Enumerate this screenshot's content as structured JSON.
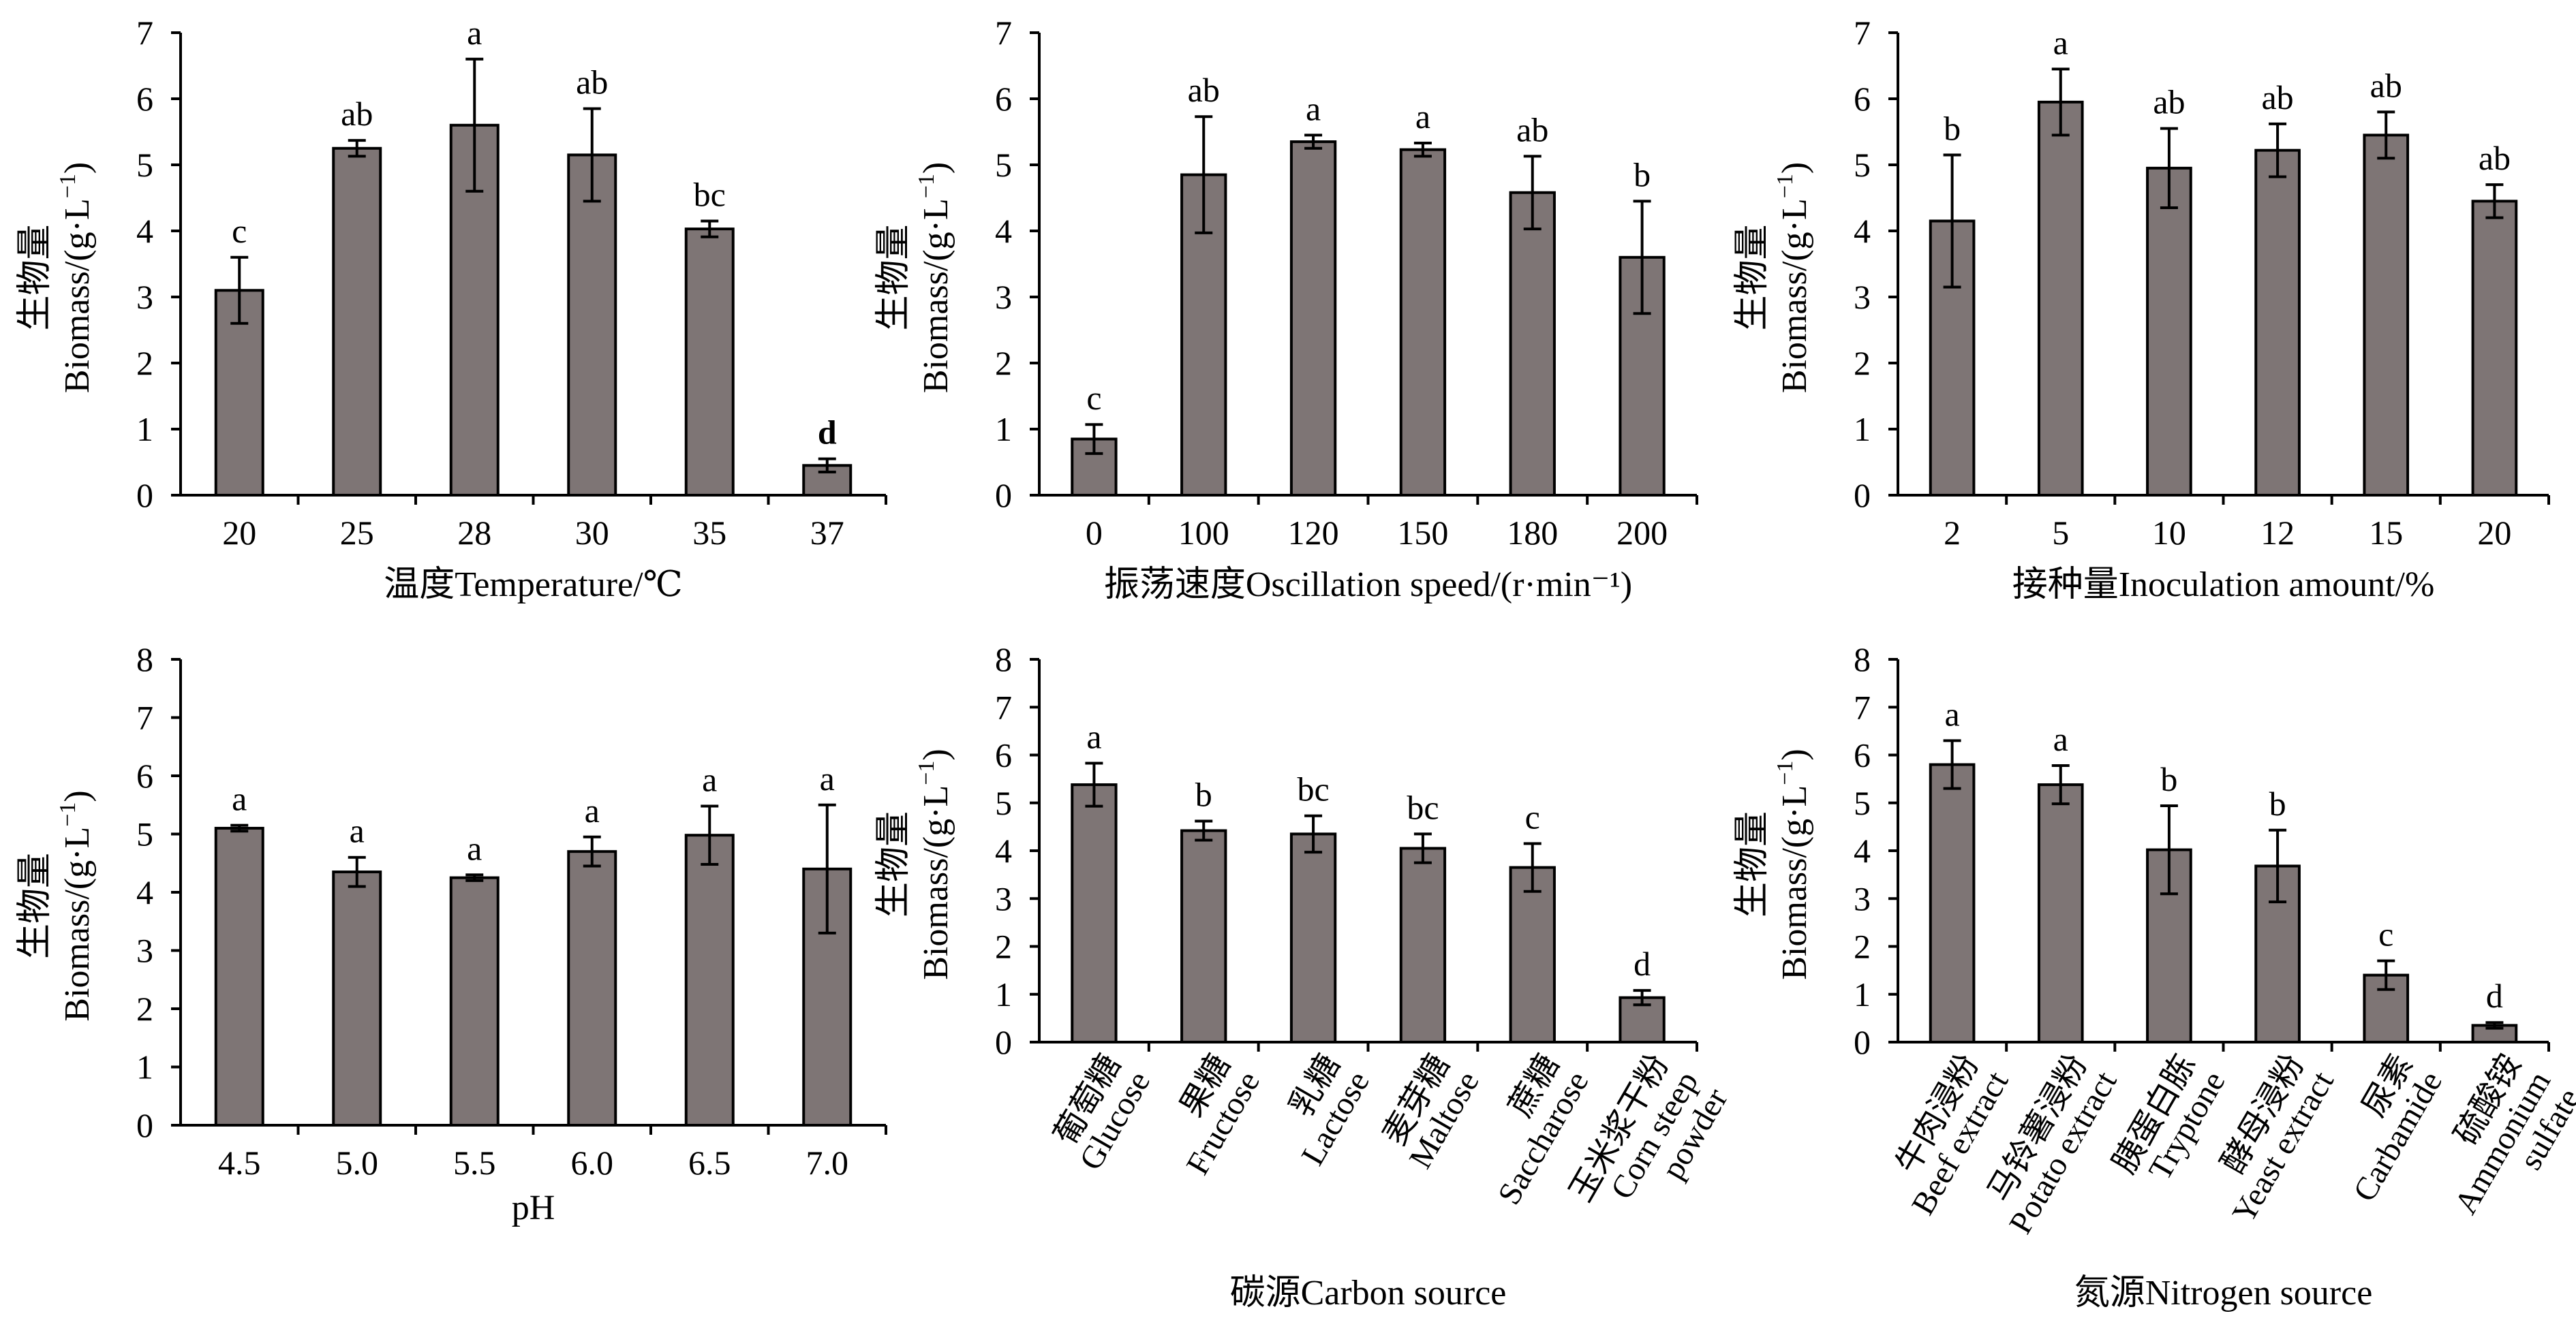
{
  "colors": {
    "bar": "#7e7575",
    "stroke": "#000000",
    "background": "#ffffff"
  },
  "ylabel_cn": "生物量",
  "ylabel_en": "Biomass/(g·L",
  "ylabel_sup": "−1",
  "ylabel_close": ")",
  "chart_data": [
    {
      "id": "temperature",
      "type": "bar",
      "categories": [
        "20",
        "25",
        "28",
        "30",
        "35",
        "37"
      ],
      "values": [
        3.1,
        5.25,
        5.6,
        5.15,
        4.03,
        0.45
      ],
      "errors": [
        0.5,
        0.12,
        1.0,
        0.7,
        0.12,
        0.1
      ],
      "letters": [
        "c",
        "ab",
        "a",
        "ab",
        "bc",
        "d"
      ],
      "letter_bold": [
        false,
        false,
        false,
        false,
        false,
        true
      ],
      "xlabel": "温度Temperature/℃",
      "ylabel": "生物量 Biomass/(g·L−1)",
      "ylim": [
        0,
        7
      ],
      "yticks": [
        "0",
        "1",
        "2",
        "3",
        "4",
        "5",
        "6",
        "7"
      ]
    },
    {
      "id": "oscillation",
      "type": "bar",
      "categories": [
        "0",
        "100",
        "120",
        "150",
        "180",
        "200"
      ],
      "values": [
        0.85,
        4.85,
        5.35,
        5.23,
        4.58,
        3.6
      ],
      "errors": [
        0.22,
        0.88,
        0.1,
        0.1,
        0.55,
        0.85
      ],
      "letters": [
        "c",
        "ab",
        "a",
        "a",
        "ab",
        "b"
      ],
      "letter_bold": [
        false,
        false,
        false,
        false,
        false,
        false
      ],
      "xlabel": "振荡速度Oscillation speed/(r·min⁻¹)",
      "ylabel": "生物量 Biomass/(g·L−1)",
      "ylim": [
        0,
        7
      ],
      "yticks": [
        "0",
        "1",
        "2",
        "3",
        "4",
        "5",
        "6",
        "7"
      ]
    },
    {
      "id": "inoculation",
      "type": "bar",
      "categories": [
        "2",
        "5",
        "10",
        "12",
        "15",
        "20"
      ],
      "values": [
        4.15,
        5.95,
        4.95,
        5.22,
        5.45,
        4.45
      ],
      "errors": [
        1.0,
        0.5,
        0.6,
        0.4,
        0.35,
        0.25
      ],
      "letters": [
        "b",
        "a",
        "ab",
        "ab",
        "ab",
        "ab"
      ],
      "letter_bold": [
        false,
        false,
        false,
        false,
        false,
        false
      ],
      "xlabel": "接种量Inoculation amount/%",
      "ylabel": "生物量 Biomass/(g·L−1)",
      "ylim": [
        0,
        7
      ],
      "yticks": [
        "0",
        "1",
        "2",
        "3",
        "4",
        "5",
        "6",
        "7"
      ]
    },
    {
      "id": "ph",
      "type": "bar",
      "categories": [
        "4.5",
        "5.0",
        "5.5",
        "6.0",
        "6.5",
        "7.0"
      ],
      "values": [
        5.1,
        4.35,
        4.25,
        4.7,
        4.98,
        4.4
      ],
      "errors": [
        0.05,
        0.25,
        0.05,
        0.25,
        0.5,
        1.1
      ],
      "letters": [
        "a",
        "a",
        "a",
        "a",
        "a",
        "a"
      ],
      "letter_bold": [
        false,
        false,
        false,
        false,
        false,
        false
      ],
      "xlabel": "pH",
      "ylabel": "生物量 Biomass/(g·L−1)",
      "ylim": [
        0,
        8
      ],
      "yticks": [
        "0",
        "1",
        "2",
        "3",
        "4",
        "5",
        "6",
        "7",
        "8"
      ]
    },
    {
      "id": "carbon",
      "type": "bar",
      "categories": [
        "葡萄糖 Glucose",
        "果糖 Fructose",
        "乳糖 Lactose",
        "麦芽糖 Maltose",
        "蔗糖 Saccharose",
        "玉米浆干粉 Corn steep powder"
      ],
      "category_lines": [
        [
          "葡萄糖",
          "Glucose"
        ],
        [
          "果糖",
          "Fructose"
        ],
        [
          "乳糖",
          "Lactose"
        ],
        [
          "麦芽糖",
          "Maltose"
        ],
        [
          "蔗糖",
          "Saccharose"
        ],
        [
          "玉米浆干粉",
          "Corn steep",
          "powder"
        ]
      ],
      "values": [
        5.38,
        4.42,
        4.35,
        4.05,
        3.65,
        0.93
      ],
      "errors": [
        0.45,
        0.2,
        0.38,
        0.3,
        0.5,
        0.15
      ],
      "letters": [
        "a",
        "b",
        "bc",
        "bc",
        "c",
        "d"
      ],
      "letter_bold": [
        false,
        false,
        false,
        false,
        false,
        false
      ],
      "xlabel": "碳源Carbon source",
      "ylabel": "生物量 Biomass/(g·L−1)",
      "ylim": [
        0,
        8
      ],
      "yticks": [
        "0",
        "1",
        "2",
        "3",
        "4",
        "5",
        "6",
        "7",
        "8"
      ]
    },
    {
      "id": "nitrogen",
      "type": "bar",
      "categories": [
        "牛肉浸粉 Beef extract",
        "马铃薯浸粉 Potato extract",
        "胰蛋白胨 Tryptone",
        "酵母浸粉 Yeast extract",
        "尿素 Carbamide",
        "硫酸铵 Ammonium sulfate"
      ],
      "category_lines": [
        [
          "牛肉浸粉",
          "Beef extract"
        ],
        [
          "马铃薯浸粉",
          "Potato extract"
        ],
        [
          "胰蛋白胨",
          "Tryptone"
        ],
        [
          "酵母浸粉",
          "Yeast extract"
        ],
        [
          "尿素",
          "Carbamide"
        ],
        [
          "硫酸铵",
          "Ammonium",
          "sulfate"
        ]
      ],
      "values": [
        5.8,
        5.38,
        4.02,
        3.68,
        1.4,
        0.35
      ],
      "errors": [
        0.5,
        0.4,
        0.92,
        0.75,
        0.3,
        0.06
      ],
      "letters": [
        "a",
        "a",
        "b",
        "b",
        "c",
        "d"
      ],
      "letter_bold": [
        false,
        false,
        false,
        false,
        false,
        false
      ],
      "xlabel": "氮源Nitrogen source",
      "ylabel": "生物量 Biomass/(g·L−1)",
      "ylim": [
        0,
        8
      ],
      "yticks": [
        "0",
        "1",
        "2",
        "3",
        "4",
        "5",
        "6",
        "7",
        "8"
      ]
    }
  ]
}
